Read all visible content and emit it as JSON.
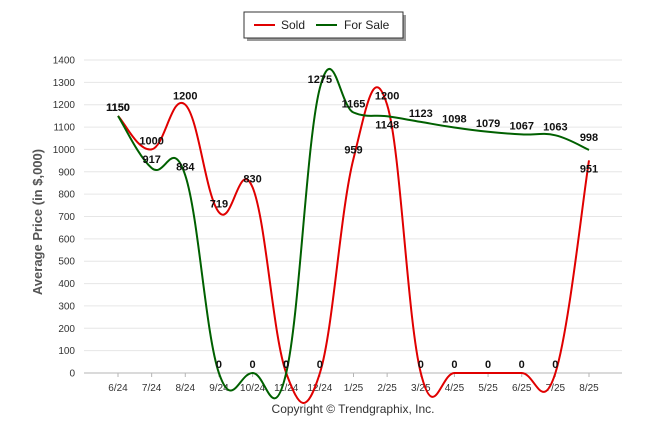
{
  "chart_data": {
    "type": "line",
    "title": "",
    "xlabel": "",
    "ylabel": "Average Price (in $,000)",
    "ylim": [
      0,
      1400
    ],
    "yticks": [
      0,
      100,
      200,
      300,
      400,
      500,
      600,
      700,
      800,
      900,
      1000,
      1100,
      1200,
      1300,
      1400
    ],
    "grid": true,
    "legend_position": "top-center",
    "categories": [
      "6/24",
      "7/24",
      "8/24",
      "9/24",
      "10/24",
      "11/24",
      "12/24",
      "1/25",
      "2/25",
      "3/25",
      "4/25",
      "5/25",
      "6/25",
      "7/25",
      "8/25"
    ],
    "series": [
      {
        "name": "Sold",
        "color": "#e00000",
        "values": [
          1150,
          1000,
          1200,
          719,
          830,
          0,
          0,
          959,
          1200,
          0,
          0,
          0,
          0,
          0,
          951
        ],
        "labels": [
          "1150",
          "1000",
          "1200",
          "719",
          "830",
          "0",
          "0",
          "959",
          "1200",
          "0",
          "0",
          "0",
          "0",
          "0",
          "951"
        ]
      },
      {
        "name": "For Sale",
        "color": "#006000",
        "values": [
          1150,
          917,
          884,
          0,
          0,
          0,
          1275,
          1165,
          1148,
          1123,
          1098,
          1079,
          1067,
          1063,
          998
        ],
        "labels": [
          "1150",
          "917",
          "884",
          "0",
          "0",
          "0",
          "1275",
          "1165",
          "1148",
          "1123",
          "1098",
          "1079",
          "1067",
          "1063",
          "998"
        ]
      }
    ]
  },
  "credit": "Copyright © Trendgraphix, Inc."
}
